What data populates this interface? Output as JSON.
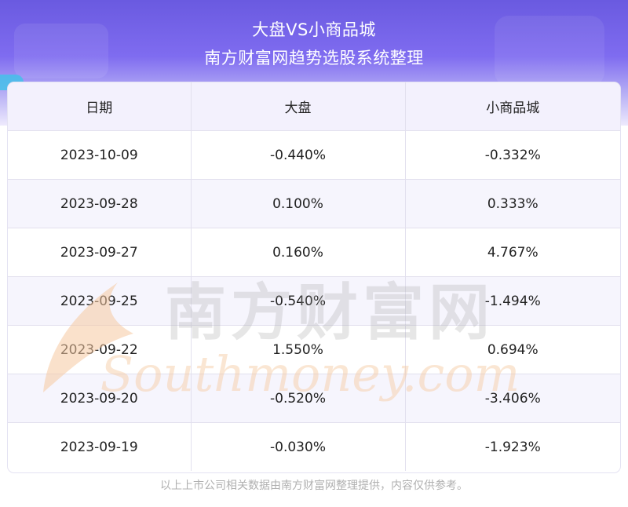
{
  "header": {
    "title_line1": "大盘VS小商品城",
    "title_line2": "南方财富网趋势选股系统整理"
  },
  "table": {
    "columns": [
      "日期",
      "大盘",
      "小商品城"
    ],
    "rows": [
      {
        "date": "2023-10-09",
        "market": "-0.440%",
        "stock": "-0.332%"
      },
      {
        "date": "2023-09-28",
        "market": "0.100%",
        "stock": "0.333%"
      },
      {
        "date": "2023-09-27",
        "market": "0.160%",
        "stock": "4.767%"
      },
      {
        "date": "2023-09-25",
        "market": "-0.540%",
        "stock": "-1.494%"
      },
      {
        "date": "2023-09-22",
        "market": "1.550%",
        "stock": "0.694%"
      },
      {
        "date": "2023-09-20",
        "market": "-0.520%",
        "stock": "-3.406%"
      },
      {
        "date": "2023-09-19",
        "market": "-0.030%",
        "stock": "-1.923%"
      }
    ]
  },
  "watermark": {
    "cn_text": "南方财富网",
    "en_text": "Southmoney.com"
  },
  "footer": {
    "text": "以上上市公司相关数据由南方财富网整理提供，内容仅供参考。"
  },
  "colors": {
    "header_top": "#6a5ae0",
    "header_bottom": "#eeeafd",
    "row_alt": "#f6f5fd",
    "watermark_orange": "#f6c9a0",
    "watermark_gray": "#a8a8a8"
  }
}
